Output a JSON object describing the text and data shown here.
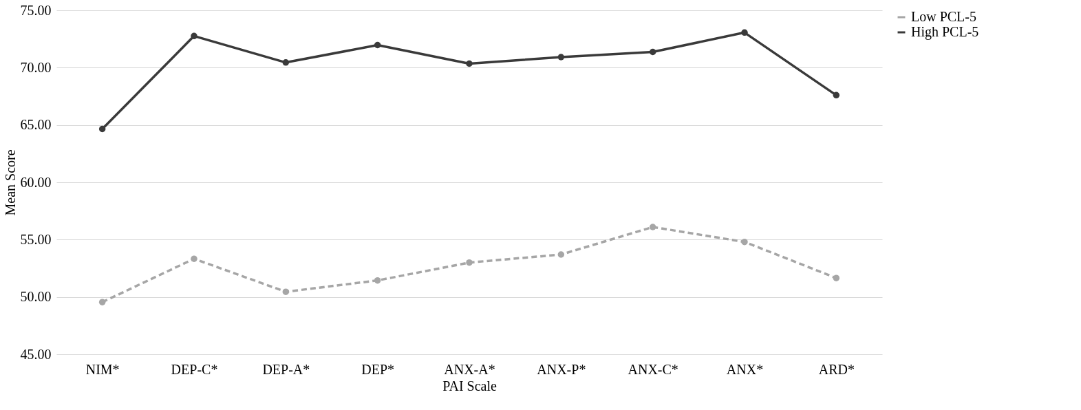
{
  "chart_data": {
    "type": "line",
    "xlabel": "PAI Scale",
    "ylabel": "Mean Score",
    "categories": [
      "NIM*",
      "DEP-C*",
      "DEP-A*",
      "DEP*",
      "ANX-A*",
      "ANX-P*",
      "ANX-C*",
      "ANX*",
      "ARD*"
    ],
    "series": [
      {
        "name": "Low PCL-5",
        "color": "#a6a6a6",
        "line_style": "dashed",
        "values": [
          49.55,
          53.33,
          50.45,
          51.44,
          53.0,
          53.7,
          56.1,
          54.8,
          51.65
        ]
      },
      {
        "name": "High PCL-5",
        "color": "#3a3a3a",
        "line_style": "solid",
        "values": [
          64.65,
          72.76,
          70.45,
          71.97,
          70.35,
          70.92,
          71.37,
          73.06,
          67.6
        ]
      }
    ],
    "ylim": [
      45,
      75
    ],
    "yticks": [
      {
        "value": 45,
        "label": "45.00"
      },
      {
        "value": 50,
        "label": "50.00"
      },
      {
        "value": 55,
        "label": "55.00"
      },
      {
        "value": 60,
        "label": "60.00"
      },
      {
        "value": 65,
        "label": "65.00"
      },
      {
        "value": 70,
        "label": "70.00"
      },
      {
        "value": 75,
        "label": "75.00"
      }
    ],
    "grid": "y",
    "legend": "top right",
    "marker": "circle"
  }
}
